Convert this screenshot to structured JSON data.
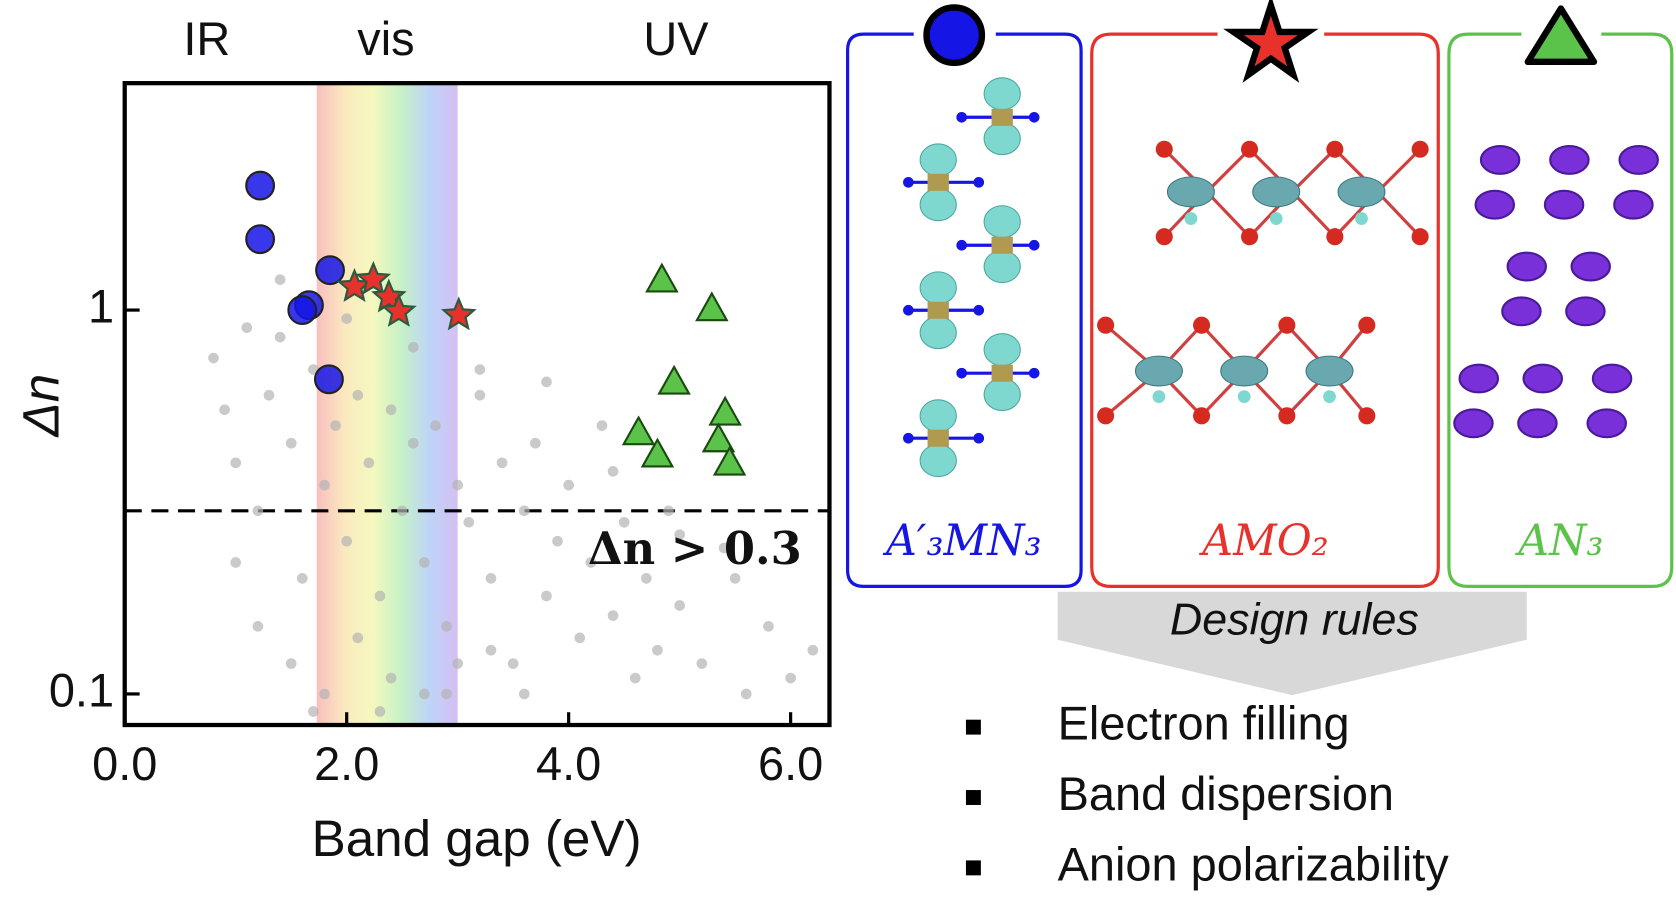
{
  "chart_data": {
    "type": "scatter",
    "xlabel": "Band gap (eV)",
    "ylabel": "Δn",
    "log_y": true,
    "xlim": [
      0,
      6.35
    ],
    "ylim": [
      0.083,
      3.9
    ],
    "xticks": [
      {
        "value": 0,
        "label": "0.0"
      },
      {
        "value": 2,
        "label": "2.0"
      },
      {
        "value": 4,
        "label": "4.0"
      },
      {
        "value": 6,
        "label": "6.0"
      }
    ],
    "yticks": [
      0.1,
      1
    ],
    "regions": [
      "IR",
      "vis",
      "UV"
    ],
    "vis_band": [
      1.73,
      3.0
    ],
    "threshold": 0.3,
    "threshold_label": "Δn > 0.3",
    "series": [
      {
        "marker": "dot",
        "color": "#b3b3b3",
        "x": [
          0.8,
          0.9,
          1.0,
          1.1,
          1.2,
          1.3,
          1.4,
          1.5,
          1.6,
          1.7,
          1.8,
          1.9,
          2.0,
          2.1,
          2.2,
          2.3,
          2.4,
          2.5,
          2.6,
          2.7,
          2.8,
          2.9,
          3.0,
          3.1,
          3.2,
          3.3,
          3.4,
          3.5,
          3.6,
          3.7,
          3.8,
          3.9,
          4.0,
          4.1,
          4.2,
          4.3,
          4.4,
          4.5,
          4.6,
          4.7,
          4.8,
          4.9,
          5.0,
          5.2,
          5.4,
          5.6,
          5.8,
          6.0,
          6.2,
          1.2,
          1.5,
          1.8,
          2.1,
          2.4,
          2.7,
          3.0,
          3.3,
          3.6,
          1.0,
          1.4,
          2.0,
          2.6,
          3.2,
          3.8,
          4.4,
          5.0,
          5.5,
          1.7,
          2.3,
          2.9
        ],
        "values": [
          0.75,
          0.55,
          0.4,
          0.9,
          0.3,
          0.6,
          0.85,
          0.45,
          0.2,
          0.7,
          0.35,
          0.5,
          0.25,
          0.6,
          0.4,
          0.18,
          0.55,
          0.3,
          0.45,
          0.22,
          0.5,
          0.15,
          0.35,
          0.28,
          0.6,
          0.2,
          0.4,
          0.12,
          0.3,
          0.45,
          0.18,
          0.25,
          0.35,
          0.14,
          0.22,
          0.5,
          0.16,
          0.28,
          0.11,
          0.2,
          0.13,
          0.3,
          0.17,
          0.12,
          0.24,
          0.1,
          0.15,
          0.11,
          0.13,
          0.15,
          0.12,
          0.1,
          0.14,
          0.11,
          0.1,
          0.12,
          0.13,
          0.1,
          0.22,
          1.2,
          0.95,
          0.8,
          0.7,
          0.65,
          0.38,
          0.26,
          0.2,
          0.09,
          0.09,
          0.1
        ]
      },
      {
        "marker": "circle",
        "color": "#1515e6",
        "x": [
          1.22,
          1.22,
          1.66,
          1.6,
          1.85,
          1.84
        ],
        "values": [
          2.11,
          1.53,
          1.03,
          1.0,
          1.27,
          0.66
        ]
      },
      {
        "marker": "star",
        "color": "#e8312a",
        "x": [
          2.07,
          2.24,
          2.38,
          2.47,
          3.01
        ],
        "values": [
          1.15,
          1.2,
          1.08,
          0.99,
          0.97
        ]
      },
      {
        "marker": "triangle",
        "color": "#5cc34a",
        "x": [
          4.84,
          5.29,
          4.95,
          5.41,
          4.63,
          4.8,
          5.35,
          5.45
        ],
        "values": [
          1.2,
          1.01,
          0.65,
          0.54,
          0.48,
          0.42,
          0.46,
          0.4
        ]
      }
    ]
  },
  "panels": [
    {
      "label": "A′₃MN₃",
      "color": "#1515e6"
    },
    {
      "label": "AMO₂",
      "color": "#e8312a"
    },
    {
      "label": "AN₃",
      "color": "#5cc34a"
    }
  ],
  "design_rules": {
    "title": "Design rules",
    "items": [
      "Electron filling",
      "Band dispersion",
      "Anion polarizability"
    ]
  }
}
